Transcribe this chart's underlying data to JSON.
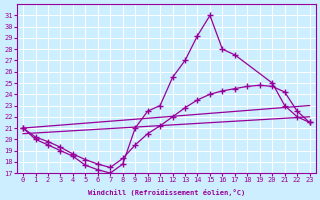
{
  "bg_color": "#cceeff",
  "grid_color": "#ffffff",
  "line_color": "#990099",
  "xlabel": "Windchill (Refroidissement éolien,°C)",
  "xlim": [
    -0.5,
    23.5
  ],
  "ylim": [
    17,
    32
  ],
  "yticks": [
    17,
    18,
    19,
    20,
    21,
    22,
    23,
    24,
    25,
    26,
    27,
    28,
    29,
    30,
    31
  ],
  "xticks": [
    0,
    1,
    2,
    3,
    4,
    5,
    6,
    7,
    8,
    9,
    10,
    11,
    12,
    13,
    14,
    15,
    16,
    17,
    18,
    19,
    20,
    21,
    22,
    23
  ],
  "series": {
    "s1": {
      "x": [
        0,
        1,
        2,
        3,
        4,
        5,
        6,
        7,
        8,
        9,
        10,
        11,
        12,
        13,
        14,
        15,
        16,
        17,
        20,
        21,
        22,
        23
      ],
      "y": [
        21.0,
        20.0,
        19.5,
        19.0,
        18.5,
        17.7,
        17.3,
        17.0,
        17.8,
        21.0,
        22.5,
        23.0,
        25.5,
        27.0,
        29.2,
        31.0,
        28.0,
        27.5,
        25.0,
        23.0,
        22.0,
        21.5
      ],
      "marker": true
    },
    "s2": {
      "x": [
        0,
        1,
        2,
        3,
        4,
        5,
        6,
        7,
        8,
        9,
        10,
        11,
        12,
        13,
        14,
        15,
        16,
        17,
        18,
        19,
        20,
        21,
        22,
        23
      ],
      "y": [
        21.0,
        20.2,
        19.8,
        19.3,
        18.7,
        18.2,
        17.8,
        17.5,
        18.3,
        19.5,
        20.5,
        21.2,
        22.0,
        22.8,
        23.5,
        24.0,
        24.3,
        24.5,
        24.7,
        24.8,
        24.7,
        24.2,
        22.5,
        21.5
      ],
      "marker": true
    },
    "s3": {
      "x": [
        0,
        23
      ],
      "y": [
        21.0,
        23.0
      ],
      "marker": false
    },
    "s4": {
      "x": [
        0,
        23
      ],
      "y": [
        20.5,
        22.0
      ],
      "marker": false
    }
  }
}
